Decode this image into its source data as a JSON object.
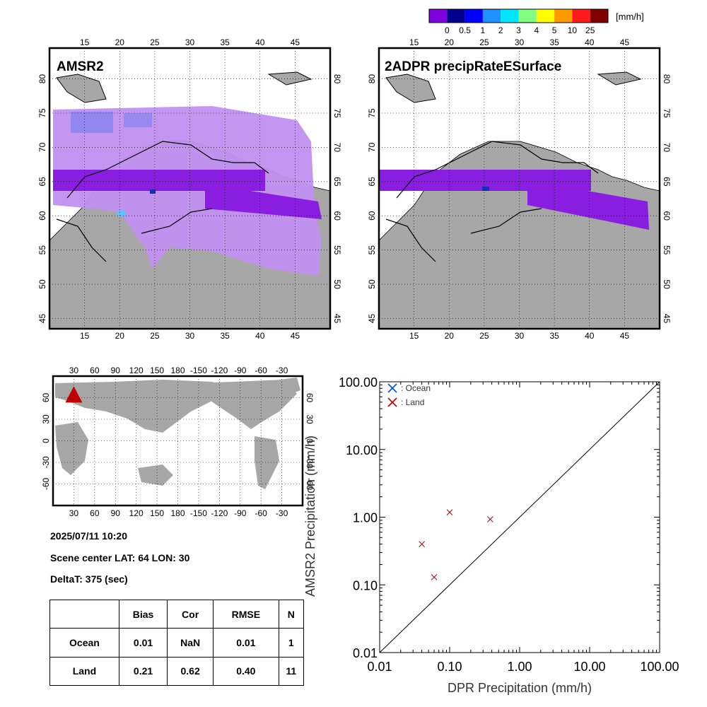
{
  "colorbar": {
    "unit": "[mm/h]",
    "colors": [
      "#8000e0",
      "#000090",
      "#0000ff",
      "#1e90ff",
      "#00e5ff",
      "#80ff80",
      "#ffff00",
      "#ff9900",
      "#ff1a1a",
      "#800000"
    ],
    "labels": [
      "0",
      "0.5",
      "1",
      "2",
      "3",
      "4",
      "5",
      "10",
      "25"
    ]
  },
  "map_amsr2": {
    "title": "AMSR2",
    "lon_ticks": [
      "15",
      "20",
      "25",
      "30",
      "35",
      "40",
      "45"
    ],
    "lat_ticks": [
      "80",
      "75",
      "70",
      "65",
      "60",
      "55",
      "50",
      "45"
    ]
  },
  "map_dpr": {
    "title": "2ADPR precipRateESurface",
    "lon_ticks": [
      "15",
      "20",
      "25",
      "30",
      "35",
      "40",
      "45"
    ],
    "lat_ticks": [
      "80",
      "75",
      "70",
      "65",
      "60",
      "55",
      "50",
      "45"
    ]
  },
  "world_map": {
    "lon_ticks": [
      "30",
      "60",
      "90",
      "120",
      "150",
      "180",
      "-150",
      "-120",
      "-90",
      "-60",
      "-30"
    ],
    "lat_ticks": [
      "60",
      "30",
      "0",
      "-30",
      "-60"
    ],
    "scene_marker": {
      "lat": 64,
      "lon": 30
    }
  },
  "info": {
    "datetime": "2025/07/11 10:20",
    "scene_center": "Scene center LAT: 64   LON:  30",
    "deltat": "DeltaT:  375 (sec)"
  },
  "stats_table": {
    "headers": [
      "",
      "Bias",
      "Cor",
      "RMSE",
      "N"
    ],
    "rows": [
      [
        "Ocean",
        "0.01",
        "NaN",
        "0.01",
        "1"
      ],
      [
        "Land",
        "0.21",
        "0.62",
        "0.40",
        "11"
      ]
    ]
  },
  "chart_data": {
    "type": "scatter",
    "xlabel": "DPR Precipitation (mm/h)",
    "ylabel": "AMSR2 Precipitation (mm/h)",
    "xscale": "log",
    "yscale": "log",
    "xlim": [
      0.01,
      100
    ],
    "ylim": [
      0.01,
      100
    ],
    "x_tick_labels": [
      "0.01",
      "0.10",
      "1.00",
      "10.00",
      "100.00"
    ],
    "y_tick_labels": [
      "0.01",
      "0.10",
      "1.00",
      "10.00",
      "100.00"
    ],
    "legend_position": "top-left",
    "series": [
      {
        "name": ": Ocean",
        "color": "#0050e0",
        "marker": "x",
        "points": []
      },
      {
        "name": ": Land",
        "color": "#c00000",
        "marker": "x",
        "points": [
          [
            0.04,
            0.4
          ],
          [
            0.06,
            0.13
          ],
          [
            0.1,
            1.18
          ],
          [
            0.38,
            0.93
          ]
        ]
      }
    ]
  }
}
